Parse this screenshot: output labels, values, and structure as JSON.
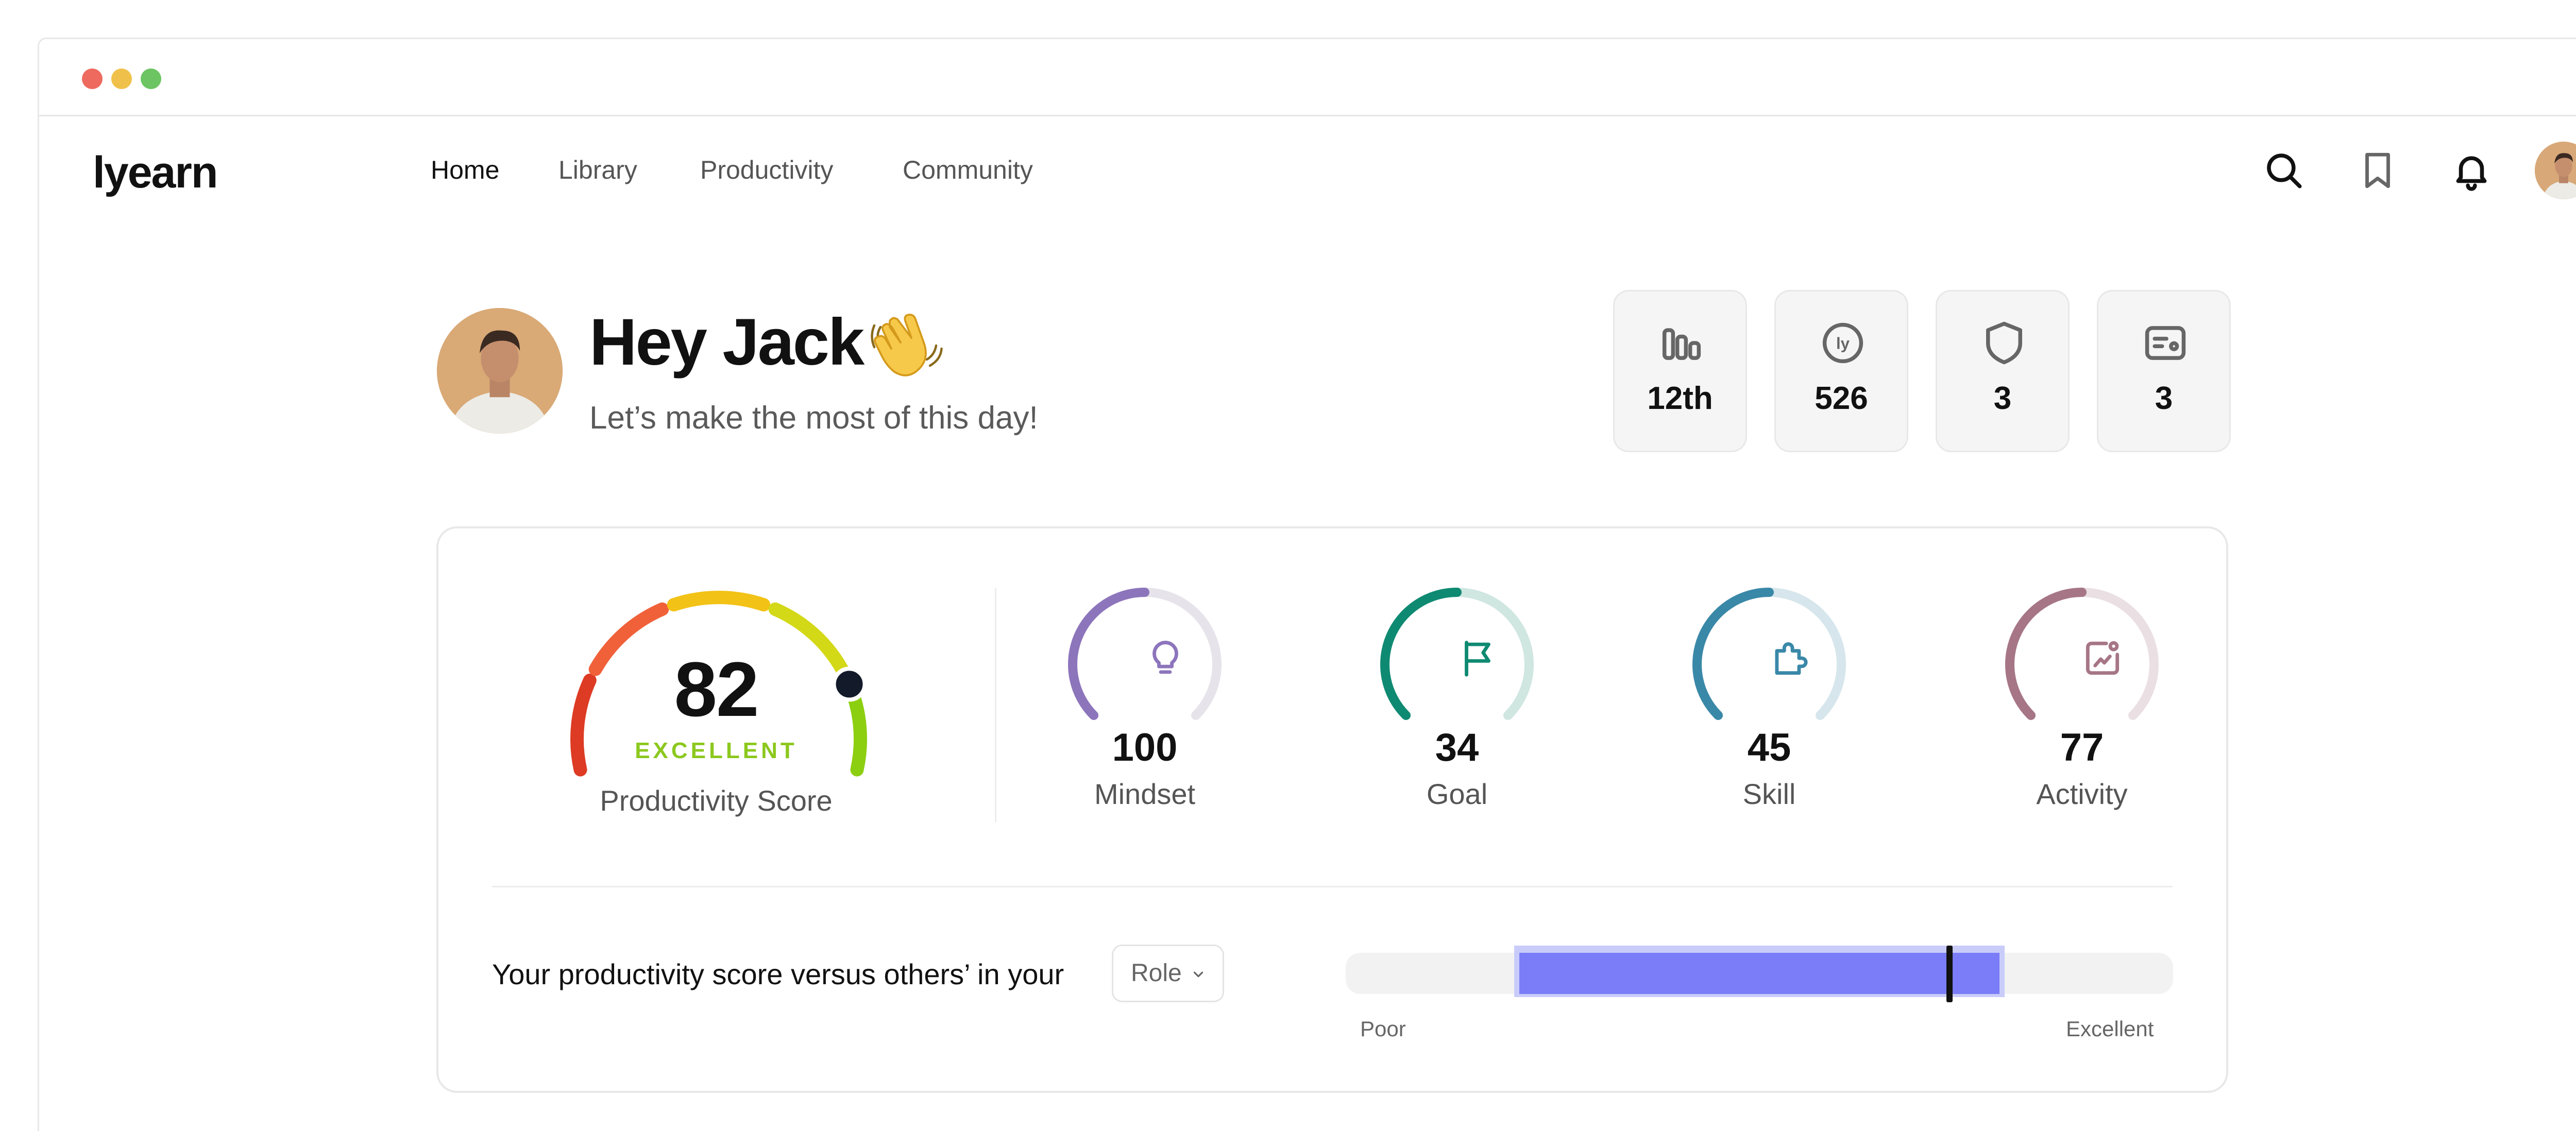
{
  "app": {
    "logo": "lyearn"
  },
  "nav": {
    "items": [
      {
        "label": "Home",
        "active": true
      },
      {
        "label": "Library",
        "active": false
      },
      {
        "label": "Productivity",
        "active": false
      },
      {
        "label": "Community",
        "active": false
      }
    ]
  },
  "header_icons": [
    "search-icon",
    "bookmark-icon",
    "bell-icon",
    "avatar"
  ],
  "greeting": {
    "title": "Hey Jack",
    "emoji": "👋",
    "subtitle": "Let’s make the most of this day!"
  },
  "stats": [
    {
      "icon": "leaderboard-icon",
      "value": "12th"
    },
    {
      "icon": "lyearn-coin-icon",
      "value": "526"
    },
    {
      "icon": "shield-icon",
      "value": "3"
    },
    {
      "icon": "certificate-icon",
      "value": "3"
    }
  ],
  "productivity": {
    "score": "82",
    "score_value": 82,
    "grade": "EXCELLENT",
    "label": "Productivity Score",
    "colors": {
      "gauge_segments": [
        "#dd3b24",
        "#f0613a",
        "#f2c216",
        "#d3d817",
        "#8ccf10"
      ],
      "grade": "#8cc81e"
    }
  },
  "metrics": [
    {
      "name": "Mindset",
      "value": "100",
      "fraction": 0.5,
      "icon": "lightbulb-icon",
      "color": "#8d75bc",
      "track": "#e6e4ea"
    },
    {
      "name": "Goal",
      "value": "34",
      "fraction": 0.5,
      "icon": "flag-icon",
      "color": "#0f8a72",
      "track": "#cfe6e1"
    },
    {
      "name": "Skill",
      "value": "45",
      "fraction": 0.5,
      "icon": "puzzle-icon",
      "color": "#3a88a8",
      "track": "#d6e6ec"
    },
    {
      "name": "Activity",
      "value": "77",
      "fraction": 0.5,
      "icon": "chart-card-icon",
      "color": "#a67686",
      "track": "#eadfe2"
    }
  ],
  "comparison": {
    "text": "Your productivity score versus others’ in your",
    "select_value": "Role",
    "min_label": "Poor",
    "max_label": "Excellent",
    "range_start_pct": 21,
    "range_end_pct": 79,
    "marker_pct": 73,
    "colors": {
      "range": "#7a7df7",
      "range_halo": "#c9ccf9",
      "track": "#f2f2f2",
      "marker": "#111111"
    }
  }
}
